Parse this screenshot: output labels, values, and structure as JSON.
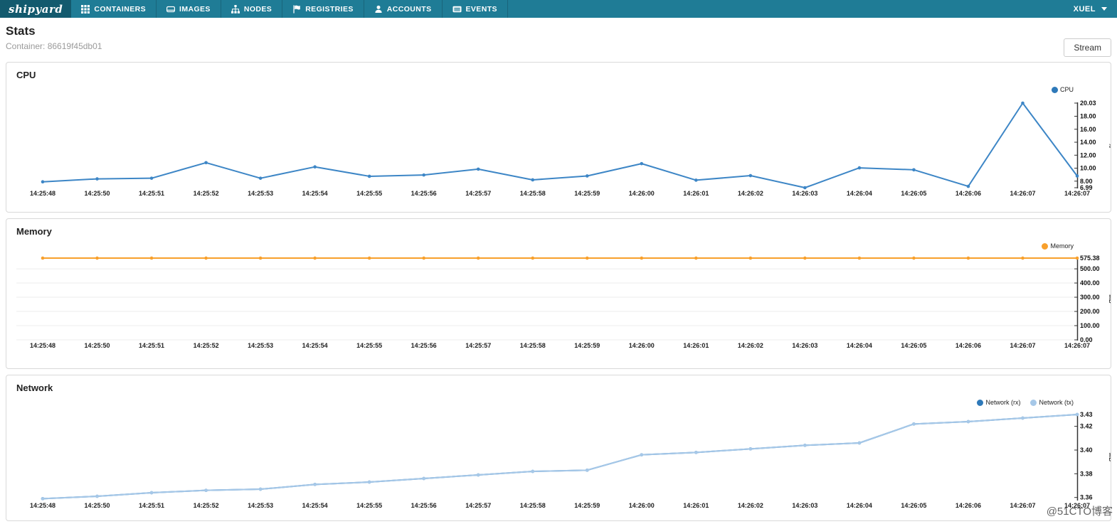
{
  "nav": {
    "logo": "shipyard",
    "items": [
      {
        "label": "CONTAINERS"
      },
      {
        "label": "IMAGES"
      },
      {
        "label": "NODES"
      },
      {
        "label": "REGISTRIES"
      },
      {
        "label": "ACCOUNTS"
      },
      {
        "label": "EVENTS"
      }
    ],
    "user": {
      "label": "XUEL"
    }
  },
  "header": {
    "title": "Stats",
    "subtitle": "Container: 86619f45db01",
    "stream_button": "Stream"
  },
  "watermark": "@51CTO博客",
  "colors": {
    "navbar": "#1f7c96",
    "navbar_logo": "#135a6e",
    "cpu_line": "#3d86c6",
    "memory_line": "#f8a02c",
    "network_rx": "#2e79b9",
    "network_tx": "#a6c8e8",
    "panel_border": "#d9d9d9",
    "grid_line": "#ececec"
  },
  "chart_data": [
    {
      "id": "cpu",
      "type": "line",
      "title": "CPU",
      "unit": "%",
      "grid": false,
      "legend": [
        {
          "label": "CPU",
          "color": "#2e79b9"
        }
      ],
      "categories": [
        "14:25:48",
        "14:25:50",
        "14:25:51",
        "14:25:52",
        "14:25:53",
        "14:25:54",
        "14:25:55",
        "14:25:56",
        "14:25:57",
        "14:25:58",
        "14:25:59",
        "14:26:00",
        "14:26:01",
        "14:26:02",
        "14:26:03",
        "14:26:04",
        "14:26:05",
        "14:26:06",
        "14:26:07",
        "14:26:07"
      ],
      "series": [
        {
          "name": "CPU",
          "color": "#3d86c6",
          "values": [
            7.9,
            8.35,
            8.45,
            10.85,
            8.45,
            10.2,
            8.75,
            8.95,
            9.85,
            8.2,
            8.8,
            10.7,
            8.15,
            8.85,
            6.99,
            10.05,
            9.75,
            7.2,
            20.03,
            8.8
          ]
        }
      ],
      "yticks": [
        {
          "label": "20.03",
          "value": 20.03
        },
        {
          "label": "18.00",
          "value": 18
        },
        {
          "label": "16.00",
          "value": 16
        },
        {
          "label": "14.00",
          "value": 14
        },
        {
          "label": "12.00",
          "value": 12
        },
        {
          "label": "10.00",
          "value": 10
        },
        {
          "label": "8.00",
          "value": 8
        },
        {
          "label": "6.99",
          "value": 6.99
        }
      ],
      "ylim": [
        6.99,
        20.03
      ]
    },
    {
      "id": "memory",
      "type": "line",
      "title": "Memory",
      "unit": "MB",
      "grid": true,
      "legend": [
        {
          "label": "Memory",
          "color": "#f8a02c"
        }
      ],
      "categories": [
        "14:25:48",
        "14:25:50",
        "14:25:51",
        "14:25:52",
        "14:25:53",
        "14:25:54",
        "14:25:55",
        "14:25:56",
        "14:25:57",
        "14:25:58",
        "14:25:59",
        "14:26:00",
        "14:26:01",
        "14:26:02",
        "14:26:03",
        "14:26:04",
        "14:26:05",
        "14:26:06",
        "14:26:07",
        "14:26:07"
      ],
      "series": [
        {
          "name": "Memory",
          "color": "#f8a02c",
          "values": [
            575.38,
            575.38,
            575.38,
            575.38,
            575.38,
            575.38,
            575.38,
            575.38,
            575.38,
            575.38,
            575.38,
            575.38,
            575.38,
            575.38,
            575.38,
            575.38,
            575.38,
            575.38,
            575.38,
            575.38
          ]
        }
      ],
      "yticks": [
        {
          "label": "575.38",
          "value": 575.38
        },
        {
          "label": "500.00",
          "value": 500
        },
        {
          "label": "400.00",
          "value": 400
        },
        {
          "label": "300.00",
          "value": 300
        },
        {
          "label": "200.00",
          "value": 200
        },
        {
          "label": "100.00",
          "value": 100
        },
        {
          "label": "0.00",
          "value": 0
        }
      ],
      "ylim": [
        0,
        575.38
      ]
    },
    {
      "id": "network",
      "type": "line",
      "title": "Network",
      "unit": "MB",
      "grid": false,
      "legend": [
        {
          "label": "Network (rx)",
          "color": "#2e79b9"
        },
        {
          "label": "Network (tx)",
          "color": "#a6c8e8"
        }
      ],
      "categories": [
        "14:25:48",
        "14:25:50",
        "14:25:51",
        "14:25:52",
        "14:25:53",
        "14:25:54",
        "14:25:55",
        "14:25:56",
        "14:25:57",
        "14:25:58",
        "14:25:59",
        "14:26:00",
        "14:26:01",
        "14:26:02",
        "14:26:03",
        "14:26:04",
        "14:26:05",
        "14:26:06",
        "14:26:07",
        "14:26:07"
      ],
      "series": [
        {
          "name": "Network (rx)",
          "color": "#2e79b9",
          "values": [
            3.359,
            3.361,
            3.364,
            3.366,
            3.367,
            3.371,
            3.373,
            3.376,
            3.379,
            3.382,
            3.383,
            3.396,
            3.398,
            3.401,
            3.404,
            3.406,
            3.422,
            3.424,
            3.427,
            3.43
          ]
        },
        {
          "name": "Network (tx)",
          "color": "#a6c8e8",
          "values": [
            3.359,
            3.361,
            3.364,
            3.366,
            3.367,
            3.371,
            3.373,
            3.376,
            3.379,
            3.382,
            3.383,
            3.396,
            3.398,
            3.401,
            3.404,
            3.406,
            3.422,
            3.424,
            3.427,
            3.43
          ]
        }
      ],
      "yticks": [
        {
          "label": "3.43",
          "value": 3.43
        },
        {
          "label": "3.42",
          "value": 3.42
        },
        {
          "label": "3.40",
          "value": 3.4
        },
        {
          "label": "3.38",
          "value": 3.38
        },
        {
          "label": "3.36",
          "value": 3.36
        }
      ],
      "ylim": [
        3.358,
        3.43
      ]
    }
  ]
}
